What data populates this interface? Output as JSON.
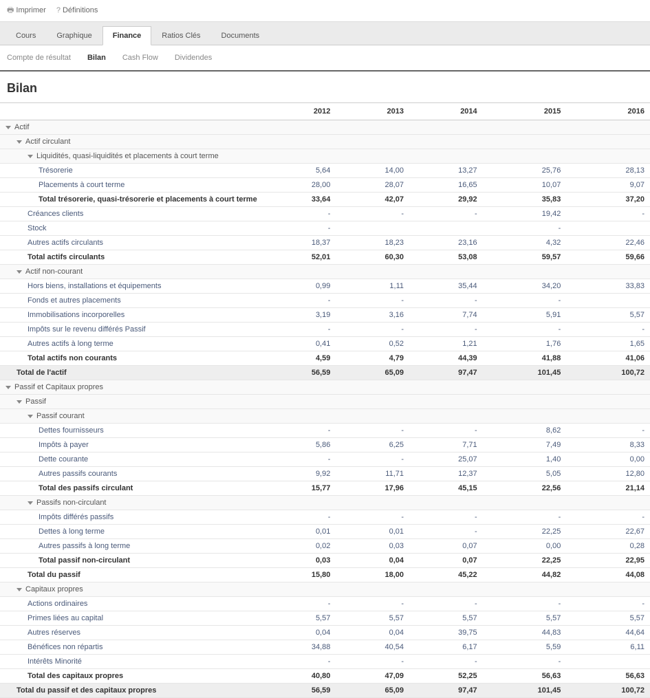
{
  "toolbar": {
    "print": "Imprimer",
    "definitions": "Définitions"
  },
  "mainTabs": [
    {
      "label": "Cours",
      "active": false
    },
    {
      "label": "Graphique",
      "active": false
    },
    {
      "label": "Finance",
      "active": true
    },
    {
      "label": "Ratios Clés",
      "active": false
    },
    {
      "label": "Documents",
      "active": false
    }
  ],
  "subTabs": [
    {
      "label": "Compte de résultat",
      "active": false
    },
    {
      "label": "Bilan",
      "active": true
    },
    {
      "label": "Cash Flow",
      "active": false
    },
    {
      "label": "Dividendes",
      "active": false
    }
  ],
  "pageTitle": "Bilan",
  "years": [
    "2012",
    "2013",
    "2014",
    "2015",
    "2016"
  ],
  "rows": [
    {
      "label": "Actif",
      "indent": 0,
      "section": true,
      "expand": true,
      "vals": [
        "",
        "",
        "",
        "",
        ""
      ]
    },
    {
      "label": "Actif circulant",
      "indent": 1,
      "section": true,
      "expand": true,
      "vals": [
        "",
        "",
        "",
        "",
        ""
      ]
    },
    {
      "label": "Liquidités, quasi-liquidités et placements à court terme",
      "indent": 2,
      "section": true,
      "expand": true,
      "vals": [
        "",
        "",
        "",
        "",
        ""
      ]
    },
    {
      "label": "Trésorerie",
      "indent": 3,
      "link": true,
      "vals": [
        "5,64",
        "14,00",
        "13,27",
        "25,76",
        "28,13"
      ]
    },
    {
      "label": "Placements à court terme",
      "indent": 3,
      "link": true,
      "vals": [
        "28,00",
        "28,07",
        "16,65",
        "10,07",
        "9,07"
      ]
    },
    {
      "label": "Total trésorerie, quasi-trésorerie et placements à court terme",
      "indent": 3,
      "bold": true,
      "vals": [
        "33,64",
        "42,07",
        "29,92",
        "35,83",
        "37,20"
      ]
    },
    {
      "label": "Créances clients",
      "indent": 2,
      "link": true,
      "vals": [
        "-",
        "-",
        "-",
        "19,42",
        "-"
      ]
    },
    {
      "label": "Stock",
      "indent": 2,
      "link": true,
      "vals": [
        "-",
        "",
        "",
        "-",
        ""
      ]
    },
    {
      "label": "Autres actifs circulants",
      "indent": 2,
      "link": true,
      "vals": [
        "18,37",
        "18,23",
        "23,16",
        "4,32",
        "22,46"
      ]
    },
    {
      "label": "Total actifs circulants",
      "indent": 2,
      "bold": true,
      "vals": [
        "52,01",
        "60,30",
        "53,08",
        "59,57",
        "59,66"
      ]
    },
    {
      "label": "Actif non-courant",
      "indent": 1,
      "section": true,
      "expand": true,
      "vals": [
        "",
        "",
        "",
        "",
        ""
      ]
    },
    {
      "label": "Hors biens, installations et équipements",
      "indent": 2,
      "link": true,
      "vals": [
        "0,99",
        "1,11",
        "35,44",
        "34,20",
        "33,83"
      ]
    },
    {
      "label": "Fonds et autres placements",
      "indent": 2,
      "link": true,
      "vals": [
        "-",
        "-",
        "-",
        "-",
        ""
      ]
    },
    {
      "label": "Immobilisations incorporelles",
      "indent": 2,
      "link": true,
      "vals": [
        "3,19",
        "3,16",
        "7,74",
        "5,91",
        "5,57"
      ]
    },
    {
      "label": "Impôts sur le revenu différés Passif",
      "indent": 2,
      "link": true,
      "vals": [
        "-",
        "-",
        "-",
        "-",
        "-"
      ]
    },
    {
      "label": "Autres actifs à long terme",
      "indent": 2,
      "link": true,
      "vals": [
        "0,41",
        "0,52",
        "1,21",
        "1,76",
        "1,65"
      ]
    },
    {
      "label": "Total actifs non courants",
      "indent": 2,
      "bold": true,
      "vals": [
        "4,59",
        "4,79",
        "44,39",
        "41,88",
        "41,06"
      ]
    },
    {
      "label": "Total de l'actif",
      "indent": 1,
      "total": true,
      "vals": [
        "56,59",
        "65,09",
        "97,47",
        "101,45",
        "100,72"
      ]
    },
    {
      "label": "Passif et Capitaux propres",
      "indent": 0,
      "section": true,
      "expand": true,
      "vals": [
        "",
        "",
        "",
        "",
        ""
      ]
    },
    {
      "label": "Passif",
      "indent": 1,
      "section": true,
      "expand": true,
      "vals": [
        "",
        "",
        "",
        "",
        ""
      ]
    },
    {
      "label": "Passif courant",
      "indent": 2,
      "section": true,
      "expand": true,
      "vals": [
        "",
        "",
        "",
        "",
        ""
      ]
    },
    {
      "label": "Dettes fournisseurs",
      "indent": 3,
      "link": true,
      "vals": [
        "-",
        "-",
        "-",
        "8,62",
        "-"
      ]
    },
    {
      "label": "Impôts à payer",
      "indent": 3,
      "link": true,
      "vals": [
        "5,86",
        "6,25",
        "7,71",
        "7,49",
        "8,33"
      ]
    },
    {
      "label": "Dette courante",
      "indent": 3,
      "link": true,
      "vals": [
        "-",
        "-",
        "25,07",
        "1,40",
        "0,00"
      ]
    },
    {
      "label": "Autres passifs courants",
      "indent": 3,
      "link": true,
      "vals": [
        "9,92",
        "11,71",
        "12,37",
        "5,05",
        "12,80"
      ]
    },
    {
      "label": "Total des passifs circulant",
      "indent": 3,
      "bold": true,
      "vals": [
        "15,77",
        "17,96",
        "45,15",
        "22,56",
        "21,14"
      ]
    },
    {
      "label": "Passifs non-circulant",
      "indent": 2,
      "section": true,
      "expand": true,
      "vals": [
        "",
        "",
        "",
        "",
        ""
      ]
    },
    {
      "label": "Impôts différés passifs",
      "indent": 3,
      "link": true,
      "vals": [
        "-",
        "-",
        "-",
        "-",
        "-"
      ]
    },
    {
      "label": "Dettes à long terme",
      "indent": 3,
      "link": true,
      "vals": [
        "0,01",
        "0,01",
        "-",
        "22,25",
        "22,67"
      ]
    },
    {
      "label": "Autres passifs à long terme",
      "indent": 3,
      "link": true,
      "vals": [
        "0,02",
        "0,03",
        "0,07",
        "0,00",
        "0,28"
      ]
    },
    {
      "label": "Total passif non-circulant",
      "indent": 3,
      "bold": true,
      "vals": [
        "0,03",
        "0,04",
        "0,07",
        "22,25",
        "22,95"
      ]
    },
    {
      "label": "Total du passif",
      "indent": 2,
      "bold": true,
      "vals": [
        "15,80",
        "18,00",
        "45,22",
        "44,82",
        "44,08"
      ]
    },
    {
      "label": "Capitaux propres",
      "indent": 1,
      "section": true,
      "expand": true,
      "vals": [
        "",
        "",
        "",
        "",
        ""
      ]
    },
    {
      "label": "Actions ordinaires",
      "indent": 2,
      "link": true,
      "vals": [
        "-",
        "-",
        "-",
        "-",
        "-"
      ]
    },
    {
      "label": "Primes liées au capital",
      "indent": 2,
      "link": true,
      "vals": [
        "5,57",
        "5,57",
        "5,57",
        "5,57",
        "5,57"
      ]
    },
    {
      "label": "Autres réserves",
      "indent": 2,
      "link": true,
      "vals": [
        "0,04",
        "0,04",
        "39,75",
        "44,83",
        "44,64"
      ]
    },
    {
      "label": "Bénéfices non répartis",
      "indent": 2,
      "link": true,
      "vals": [
        "34,88",
        "40,54",
        "6,17",
        "5,59",
        "6,11"
      ]
    },
    {
      "label": "Intérêts Minorité",
      "indent": 2,
      "link": true,
      "vals": [
        "-",
        "-",
        "-",
        "-",
        ""
      ]
    },
    {
      "label": "Total des capitaux propres",
      "indent": 2,
      "bold": true,
      "vals": [
        "40,80",
        "47,09",
        "52,25",
        "56,63",
        "56,63"
      ]
    },
    {
      "label": "Total du passif et des capitaux propres",
      "indent": 1,
      "total": true,
      "vals": [
        "56,59",
        "65,09",
        "97,47",
        "101,45",
        "100,72"
      ]
    }
  ]
}
